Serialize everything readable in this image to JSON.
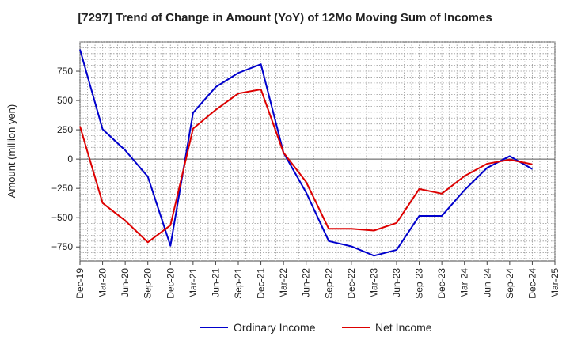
{
  "chart_data": {
    "type": "line",
    "title": "[7297]  Trend of Change in Amount (YoY) of 12Mo Moving Sum of Incomes",
    "xlabel": "",
    "ylabel": "Amount (million yen)",
    "categories": [
      "Dec-19",
      "Mar-20",
      "Jun-20",
      "Sep-20",
      "Dec-20",
      "Mar-21",
      "Jun-21",
      "Sep-21",
      "Dec-21",
      "Mar-22",
      "Jun-22",
      "Sep-22",
      "Dec-22",
      "Mar-23",
      "Jun-23",
      "Sep-23",
      "Dec-23",
      "Mar-24",
      "Jun-24",
      "Sep-24",
      "Dec-24",
      "Mar-25"
    ],
    "ylim": [
      -870,
      1000
    ],
    "yticks": [
      -750,
      -500,
      -250,
      0,
      250,
      500,
      750
    ],
    "ytick_labels": [
      "−750",
      "−500",
      "−250",
      "0",
      "250",
      "500",
      "750"
    ],
    "grid": true,
    "legend_position": "bottom-center",
    "series": [
      {
        "name": "Ordinary Income",
        "color": "#0000cc",
        "values": [
          935,
          255,
          75,
          -150,
          -740,
          395,
          615,
          735,
          810,
          55,
          -285,
          -700,
          -745,
          -825,
          -775,
          -485,
          -485,
          -265,
          -75,
          25,
          -85,
          null
        ]
      },
      {
        "name": "Net Income",
        "color": "#dd0000",
        "values": [
          280,
          -375,
          -525,
          -710,
          -565,
          260,
          420,
          560,
          595,
          55,
          -195,
          -595,
          -595,
          -610,
          -545,
          -255,
          -295,
          -145,
          -40,
          -5,
          -45,
          null
        ]
      }
    ]
  }
}
